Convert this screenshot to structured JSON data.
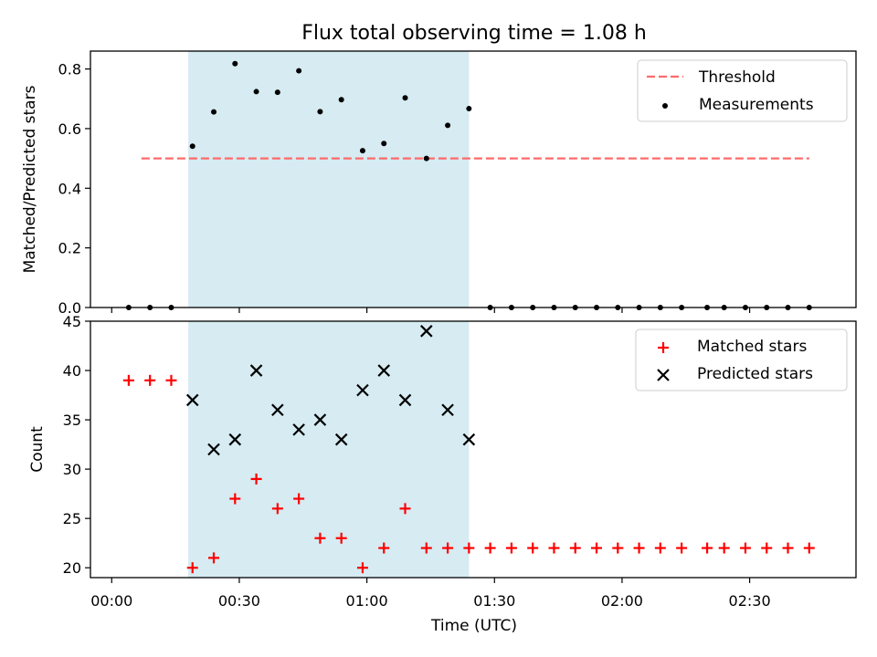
{
  "chart_data": [
    {
      "type": "scatter",
      "title": "Flux total observing time = 1.08 h",
      "xlabel": "",
      "ylabel": "Matched/Predicted stars",
      "ylim": [
        0,
        0.86
      ],
      "yticks": [
        "0.0",
        "0.2",
        "0.4",
        "0.6",
        "0.8"
      ],
      "shaded_region": {
        "x": [
          "00:18",
          "01:24"
        ],
        "color": "#add8e6"
      },
      "threshold": {
        "name": "Threshold",
        "value": 0.5,
        "x": [
          "00:07",
          "02:44"
        ],
        "color": "#ff6a6a"
      },
      "series": [
        {
          "name": "Measurements",
          "color": "#000000",
          "x": [
            "00:04",
            "00:09",
            "00:14",
            "00:19",
            "00:24",
            "00:29",
            "00:34",
            "00:39",
            "00:44",
            "00:49",
            "00:54",
            "00:59",
            "01:04",
            "01:09",
            "01:14",
            "01:19",
            "01:24",
            "01:29",
            "01:34",
            "01:39",
            "01:44",
            "01:49",
            "01:54",
            "01:59",
            "02:04",
            "02:09",
            "02:14",
            "02:20",
            "02:24",
            "02:29",
            "02:34",
            "02:39",
            "02:44"
          ],
          "y": [
            0,
            0,
            0,
            0.541,
            0.656,
            0.818,
            0.724,
            0.722,
            0.794,
            0.657,
            0.697,
            0.526,
            0.55,
            0.703,
            0.5,
            0.611,
            0.667,
            0,
            0,
            0,
            0,
            0,
            0,
            0,
            0,
            0,
            0,
            0,
            0,
            0,
            0,
            0,
            0
          ]
        }
      ],
      "legend_position": "top-right"
    },
    {
      "type": "scatter",
      "xlabel": "Time (UTC)",
      "ylabel": "Count",
      "ylim": [
        19,
        45
      ],
      "yticks": [
        "20",
        "25",
        "30",
        "35",
        "40",
        "45"
      ],
      "xlim": [
        "23:55",
        "02:55"
      ],
      "xticks": [
        "00:00",
        "00:30",
        "01:00",
        "01:30",
        "02:00",
        "02:30"
      ],
      "shaded_region": {
        "x": [
          "00:18",
          "01:24"
        ],
        "color": "#add8e6"
      },
      "series": [
        {
          "name": "Matched stars",
          "marker": "plus",
          "color": "#ff0000",
          "x": [
            "00:04",
            "00:09",
            "00:14",
            "00:19",
            "00:24",
            "00:29",
            "00:34",
            "00:39",
            "00:44",
            "00:49",
            "00:54",
            "00:59",
            "01:04",
            "01:09",
            "01:14",
            "01:19",
            "01:24",
            "01:29",
            "01:34",
            "01:39",
            "01:44",
            "01:49",
            "01:54",
            "01:59",
            "02:04",
            "02:09",
            "02:14",
            "02:20",
            "02:24",
            "02:29",
            "02:34",
            "02:39",
            "02:44"
          ],
          "y": [
            39,
            39,
            39,
            20,
            21,
            27,
            29,
            26,
            27,
            23,
            23,
            20,
            22,
            26,
            22,
            22,
            22,
            22,
            22,
            22,
            22,
            22,
            22,
            22,
            22,
            22,
            22,
            22,
            22,
            22,
            22,
            22,
            22
          ]
        },
        {
          "name": "Predicted stars",
          "marker": "x",
          "color": "#000000",
          "x": [
            "00:19",
            "00:24",
            "00:29",
            "00:34",
            "00:39",
            "00:44",
            "00:49",
            "00:54",
            "00:59",
            "01:04",
            "01:09",
            "01:14",
            "01:19",
            "01:24"
          ],
          "y": [
            37,
            32,
            33,
            40,
            36,
            34,
            35,
            33,
            38,
            40,
            37,
            44,
            36,
            33
          ]
        }
      ],
      "legend_position": "top-right"
    }
  ]
}
